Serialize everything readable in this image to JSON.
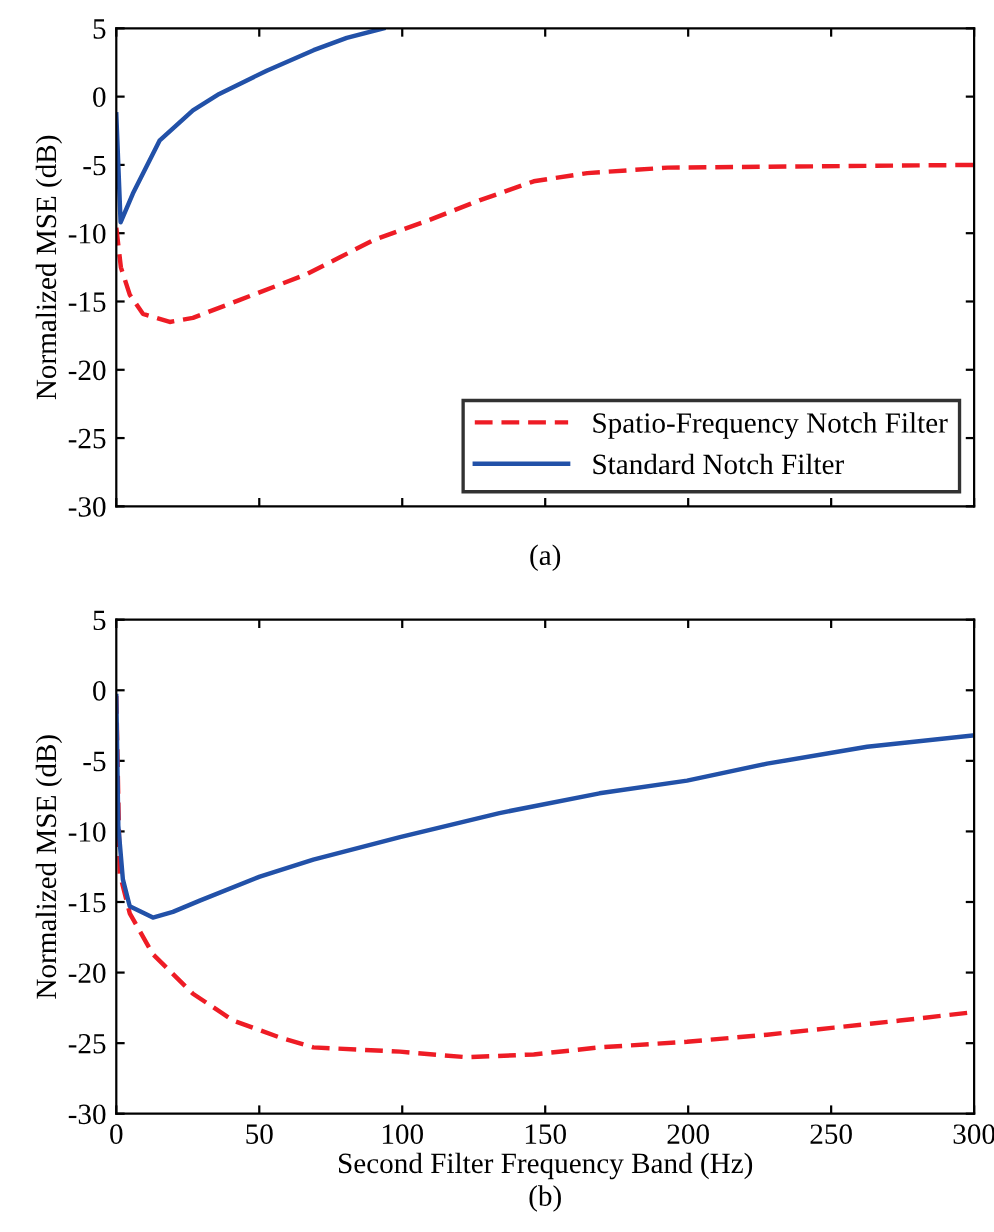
{
  "chart_data": [
    {
      "type": "line",
      "ylabel": "Normalized MSE (dB)",
      "annotations": [
        "(a)"
      ],
      "xlim": [
        0,
        300
      ],
      "xticks": [
        0,
        50,
        100,
        150,
        200,
        250,
        300
      ],
      "ylim": [
        -30,
        5
      ],
      "yticks": [
        -30,
        -25,
        -20,
        -15,
        -10,
        -5,
        0,
        5
      ],
      "tick_labels": "y",
      "legend": "bottom right",
      "grid": false,
      "series": [
        {
          "name": "Spatio-Frequency Notch Filter",
          "color": "#ee1c25",
          "line_style": "dashed",
          "x": [
            0,
            1.6,
            4.7,
            9.3,
            18.7,
            26.8,
            43,
            66.6,
            90,
            108.6,
            127,
            146,
            164.7,
            192.8,
            300
          ],
          "values": [
            -9.6,
            -12.5,
            -14.5,
            -15.9,
            -16.5,
            -16.2,
            -14.9,
            -13,
            -10.5,
            -9.1,
            -7.6,
            -6.2,
            -5.6,
            -5.2,
            -5
          ]
        },
        {
          "name": "Standard Notch Filter",
          "color": "#2251a8",
          "line_style": "solid",
          "x": [
            0,
            1.5,
            5.8,
            15.2,
            26.8,
            36,
            52.6,
            69,
            80.6,
            93.4
          ],
          "values": [
            -1.3,
            -9.2,
            -7.1,
            -3.2,
            -1.0,
            0.2,
            1.9,
            3.4,
            4.3,
            5
          ]
        }
      ]
    },
    {
      "type": "line",
      "xlabel": "Second Filter Frequency Band (Hz)",
      "ylabel": "Normalized MSE (dB)",
      "annotations": [
        "(b)"
      ],
      "xlim": [
        0,
        300
      ],
      "xticks": [
        0,
        50,
        100,
        150,
        200,
        250,
        300
      ],
      "ylim": [
        -30,
        5
      ],
      "yticks": [
        -30,
        -25,
        -20,
        -15,
        -10,
        -5,
        0,
        5
      ],
      "grid": false,
      "series": [
        {
          "color": "#ee1c25",
          "line_style": "dashed",
          "x": [
            0,
            1.2,
            4.7,
            12.8,
            26.8,
            40.9,
            57.2,
            68.9,
            99.2,
            122.6,
            146,
            169,
            199.6,
            227.6,
            251,
            274,
            300
          ],
          "values": [
            -0.4,
            -13,
            -15.8,
            -18.7,
            -21.5,
            -23.4,
            -24.6,
            -25.3,
            -25.6,
            -26,
            -25.8,
            -25.3,
            -24.9,
            -24.4,
            -23.9,
            -23.4,
            -22.8
          ]
        },
        {
          "color": "#2251a8",
          "line_style": "solid",
          "x": [
            0,
            0.7,
            2.3,
            4.7,
            12.8,
            19.8,
            29.2,
            50.2,
            68.9,
            99.2,
            134,
            169,
            199.6,
            227.6,
            262.6,
            300
          ],
          "values": [
            -0.4,
            -9.6,
            -13.4,
            -15.3,
            -16.1,
            -15.7,
            -14.9,
            -13.2,
            -12,
            -10.4,
            -8.7,
            -7.3,
            -6.4,
            -5.2,
            -4,
            -3.2
          ]
        }
      ]
    }
  ]
}
